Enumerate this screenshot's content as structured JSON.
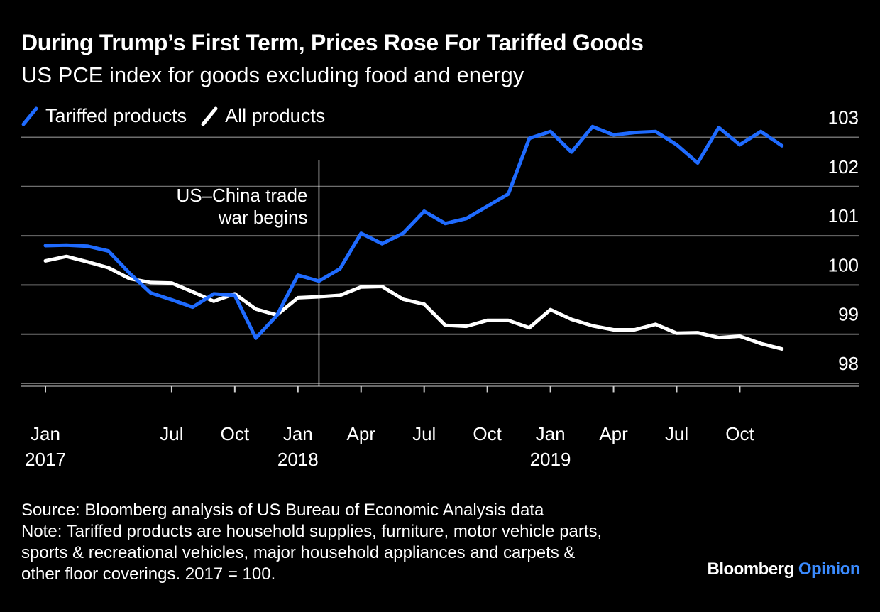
{
  "title": "During Trump’s First Term, Prices Rose For Tariffed Goods",
  "subtitle": "US PCE index for goods excluding food and energy",
  "colors": {
    "background": "#000000",
    "tariffed": "#1f6bff",
    "all": "#ffffff",
    "grid": "#6e6e6e",
    "brand_accent": "#3b8bff"
  },
  "chart_data": {
    "type": "line",
    "x": [
      "2017-01",
      "2017-02",
      "2017-03",
      "2017-04",
      "2017-05",
      "2017-06",
      "2017-07",
      "2017-08",
      "2017-09",
      "2017-10",
      "2017-11",
      "2017-12",
      "2018-01",
      "2018-02",
      "2018-03",
      "2018-04",
      "2018-05",
      "2018-06",
      "2018-07",
      "2018-08",
      "2018-09",
      "2018-10",
      "2018-11",
      "2018-12",
      "2019-01",
      "2019-02",
      "2019-03",
      "2019-04",
      "2019-05",
      "2019-06",
      "2019-07",
      "2019-08",
      "2019-09",
      "2019-10",
      "2019-11",
      "2019-12"
    ],
    "series": [
      {
        "name": "Tariffed products",
        "color": "#1f6bff",
        "values": [
          100.8,
          100.81,
          100.79,
          100.69,
          100.24,
          99.84,
          99.7,
          99.55,
          99.82,
          99.79,
          98.92,
          99.38,
          100.2,
          100.08,
          100.33,
          101.05,
          100.84,
          101.05,
          101.5,
          101.25,
          101.35,
          101.6,
          101.85,
          102.98,
          103.12,
          102.7,
          103.22,
          103.05,
          103.1,
          103.12,
          102.85,
          102.48,
          103.2,
          102.85,
          103.12,
          102.83
        ]
      },
      {
        "name": "All products",
        "color": "#ffffff",
        "values": [
          100.49,
          100.58,
          100.47,
          100.35,
          100.13,
          100.05,
          100.04,
          99.86,
          99.67,
          99.82,
          99.51,
          99.39,
          99.74,
          99.76,
          99.79,
          99.96,
          99.97,
          99.71,
          99.61,
          99.18,
          99.16,
          99.28,
          99.28,
          99.13,
          99.5,
          99.3,
          99.17,
          99.09,
          99.09,
          99.2,
          99.02,
          99.03,
          98.93,
          98.96,
          98.81,
          98.7
        ]
      }
    ],
    "ylim": [
      97.95,
      103.42
    ],
    "y_ticks": [
      98,
      99,
      100,
      101,
      102,
      103
    ],
    "y_axis_side": "right",
    "x_ticks": [
      {
        "index": 0,
        "label": "Jan",
        "year": "2017"
      },
      {
        "index": 6,
        "label": "Jul"
      },
      {
        "index": 9,
        "label": "Oct"
      },
      {
        "index": 12,
        "label": "Jan",
        "year": "2018"
      },
      {
        "index": 15,
        "label": "Apr"
      },
      {
        "index": 18,
        "label": "Jul"
      },
      {
        "index": 21,
        "label": "Oct"
      },
      {
        "index": 24,
        "label": "Jan",
        "year": "2019"
      },
      {
        "index": 27,
        "label": "Apr"
      },
      {
        "index": 30,
        "label": "Jul"
      },
      {
        "index": 33,
        "label": "Oct"
      }
    ],
    "annotation": {
      "x": "2018-02",
      "lines": [
        "US–China trade",
        "war begins"
      ]
    },
    "grid": true,
    "legend_position": "top-left"
  },
  "footer": {
    "source": "Source: Bloomberg analysis of US Bureau of Economic Analysis data",
    "note_lines": [
      "Note: Tariffed products are household supplies, furniture, motor vehicle parts,",
      "sports & recreational vehicles, major household appliances and carpets &",
      "other floor coverings. 2017 = 100."
    ]
  },
  "brand": {
    "name": "Bloomberg",
    "suffix": "Opinion"
  }
}
